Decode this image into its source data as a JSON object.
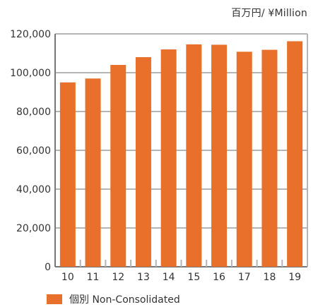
{
  "unit_label": "百万円/ ¥Million",
  "chart_data": {
    "type": "bar",
    "categories": [
      "10",
      "11",
      "12",
      "13",
      "14",
      "15",
      "16",
      "17",
      "18",
      "19"
    ],
    "series": [
      {
        "name": "個別 Non-Consolidated",
        "values": [
          95000,
          97000,
          104000,
          108000,
          112000,
          114600,
          114400,
          110800,
          111800,
          116200
        ]
      }
    ],
    "y_ticks": [
      "0",
      "20,000",
      "40,000",
      "60,000",
      "80,000",
      "100,000",
      "120,000"
    ],
    "ylim": [
      0,
      120000
    ],
    "grid": true,
    "legend_position": "bottom-left",
    "colors": {
      "bar": "#e8702a",
      "grid": "#b5b5b5",
      "axis": "#777777",
      "text": "#333333"
    }
  }
}
